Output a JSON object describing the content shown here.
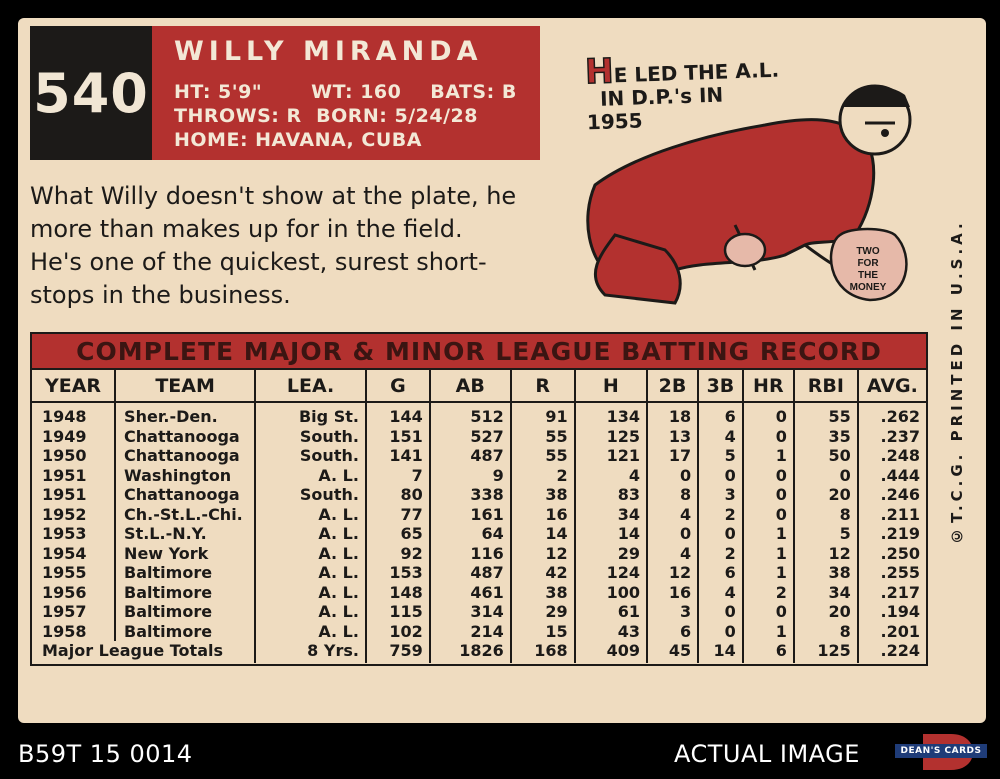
{
  "card": {
    "number": "540",
    "player_name": "WILLY MIRANDA",
    "bio": {
      "ht": "HT: 5'9\"",
      "wt": "WT: 160",
      "bats": "BATS: B",
      "throws": "THROWS: R",
      "born": "BORN: 5/24/28",
      "home": "HOME: HAVANA, CUBA"
    },
    "blurb_lines": [
      "What Willy doesn't show at the plate, he",
      "more than makes up for in the field.",
      "He's one of the quickest, surest short-",
      "stops in the business."
    ],
    "cartoon": {
      "initial": "H",
      "caption_line1": "E LED THE A.L.",
      "caption_line2": "IN D.P.'s IN",
      "caption_line3": "1955",
      "bag_line1": "TWO",
      "bag_line2": "FOR",
      "bag_line3": "THE",
      "bag_line4": "MONEY"
    },
    "copyright": "©T.C.G. PRINTED IN U.S.A.",
    "colors": {
      "accent_red": "#b3312f",
      "card_tan": "#efdcc0",
      "ink": "#1c1a18"
    }
  },
  "table": {
    "title": "COMPLETE MAJOR & MINOR LEAGUE BATTING RECORD",
    "columns": [
      "YEAR",
      "TEAM",
      "LEA.",
      "G",
      "AB",
      "R",
      "H",
      "2B",
      "3B",
      "HR",
      "RBI",
      "AVG."
    ],
    "rows": [
      [
        "1948",
        "Sher.-Den.",
        "Big St.",
        "144",
        "512",
        "91",
        "134",
        "18",
        "6",
        "0",
        "55",
        ".262"
      ],
      [
        "1949",
        "Chattanooga",
        "South.",
        "151",
        "527",
        "55",
        "125",
        "13",
        "4",
        "0",
        "35",
        ".237"
      ],
      [
        "1950",
        "Chattanooga",
        "South.",
        "141",
        "487",
        "55",
        "121",
        "17",
        "5",
        "1",
        "50",
        ".248"
      ],
      [
        "1951",
        "Washington",
        "A. L.",
        "7",
        "9",
        "2",
        "4",
        "0",
        "0",
        "0",
        "0",
        ".444"
      ],
      [
        "1951",
        "Chattanooga",
        "South.",
        "80",
        "338",
        "38",
        "83",
        "8",
        "3",
        "0",
        "20",
        ".246"
      ],
      [
        "1952",
        "Ch.-St.L.-Chi.",
        "A. L.",
        "77",
        "161",
        "16",
        "34",
        "4",
        "2",
        "0",
        "8",
        ".211"
      ],
      [
        "1953",
        "St.L.-N.Y.",
        "A. L.",
        "65",
        "64",
        "14",
        "14",
        "0",
        "0",
        "1",
        "5",
        ".219"
      ],
      [
        "1954",
        "New York",
        "A. L.",
        "92",
        "116",
        "12",
        "29",
        "4",
        "2",
        "1",
        "12",
        ".250"
      ],
      [
        "1955",
        "Baltimore",
        "A. L.",
        "153",
        "487",
        "42",
        "124",
        "12",
        "6",
        "1",
        "38",
        ".255"
      ],
      [
        "1956",
        "Baltimore",
        "A. L.",
        "148",
        "461",
        "38",
        "100",
        "16",
        "4",
        "2",
        "34",
        ".217"
      ],
      [
        "1957",
        "Baltimore",
        "A. L.",
        "115",
        "314",
        "29",
        "61",
        "3",
        "0",
        "0",
        "20",
        ".194"
      ],
      [
        "1958",
        "Baltimore",
        "A. L.",
        "102",
        "214",
        "15",
        "43",
        "6",
        "0",
        "1",
        "8",
        ".201"
      ]
    ],
    "totals": [
      "Major League Totals",
      "8 Yrs.",
      "759",
      "1826",
      "168",
      "409",
      "45",
      "14",
      "6",
      "125",
      ".224"
    ]
  },
  "footer": {
    "left": "B59T 15 0014",
    "right": "ACTUAL IMAGE",
    "logo_text": "DEAN'S CARDS"
  }
}
